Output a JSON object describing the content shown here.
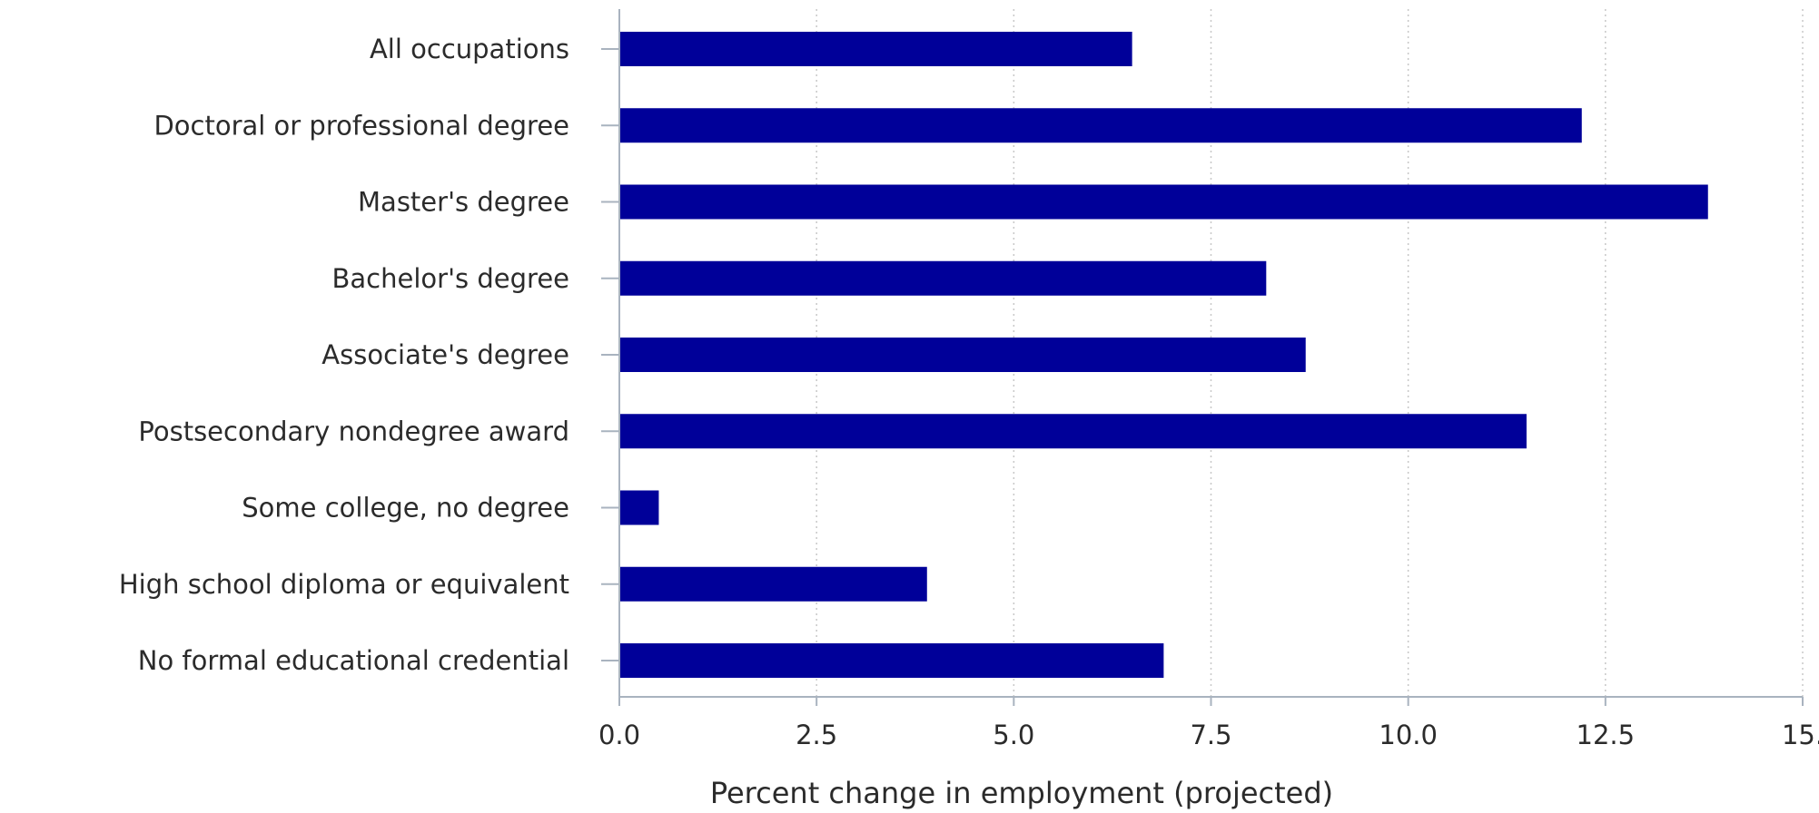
{
  "chart_data": {
    "type": "bar",
    "orientation": "horizontal",
    "categories": [
      "All occupations",
      "Doctoral or professional degree",
      "Master's degree",
      "Bachelor's degree",
      "Associate's degree",
      "Postsecondary nondegree award",
      "Some college, no degree",
      "High school diploma or equivalent",
      "No formal educational credential"
    ],
    "values": [
      6.5,
      12.2,
      13.8,
      8.2,
      8.7,
      11.5,
      0.5,
      3.9,
      6.9
    ],
    "xlabel": "Percent change in employment (projected)",
    "ylabel": "",
    "xlim": [
      0,
      15
    ],
    "xticks": [
      "0.0",
      "2.5",
      "5.0",
      "7.5",
      "10.0",
      "12.5",
      "15."
    ],
    "xtick_values": [
      0,
      2.5,
      5,
      7.5,
      10,
      12.5,
      15
    ],
    "grid": "vertical dotted",
    "legend": "none",
    "bar_color": "#000099"
  }
}
